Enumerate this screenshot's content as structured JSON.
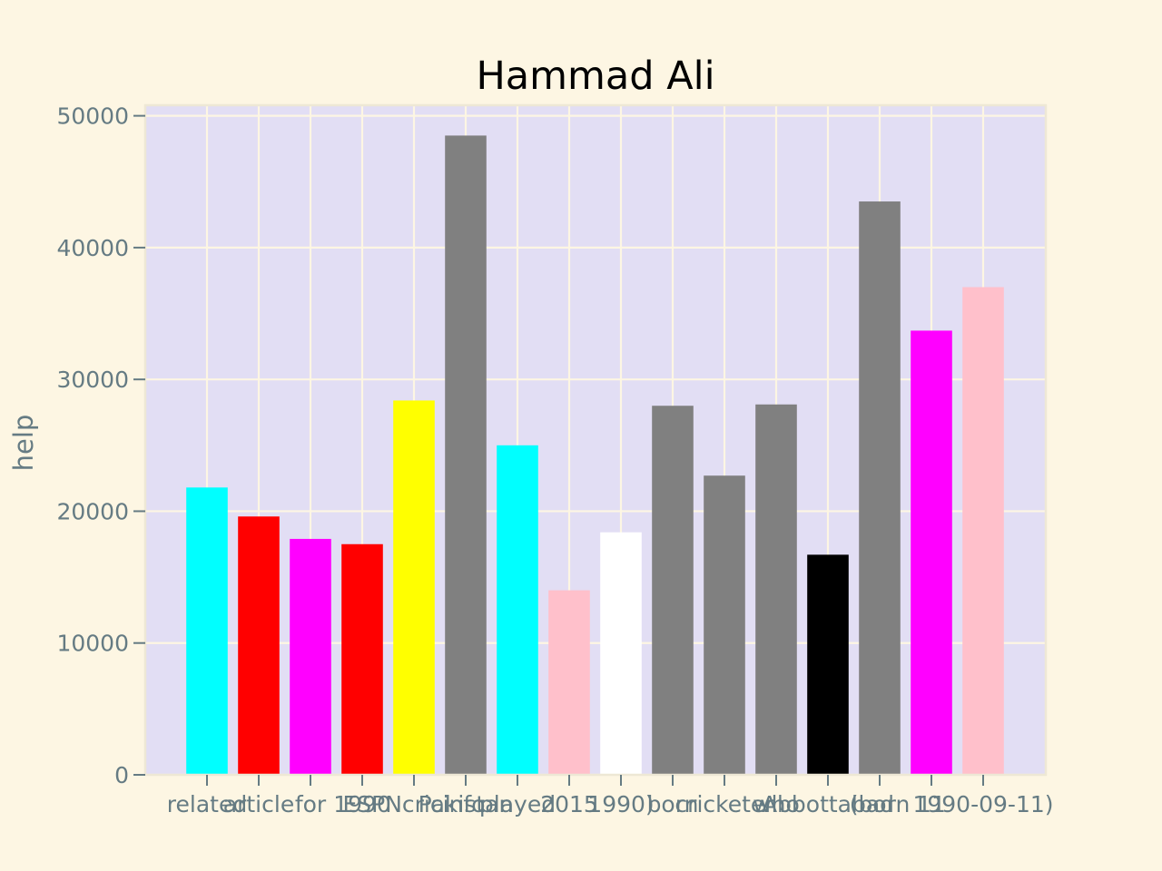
{
  "chart_data": {
    "type": "bar",
    "title": "Hammad Ali",
    "xlabel": "",
    "ylabel": "help",
    "ylim": [
      0,
      50000
    ],
    "yticks": [
      0,
      10000,
      20000,
      30000,
      40000,
      50000
    ],
    "yticklabels": [
      "0",
      "10000",
      "20000",
      "30000",
      "40000",
      "50000"
    ],
    "grid": true,
    "categories": [
      "related",
      "article",
      "for",
      "1990",
      "ESPNcricinfo",
      "Pakistan",
      "played",
      "2015",
      "1990)",
      "born",
      "cricketer",
      "who",
      "Abbottabad",
      "(born",
      "11",
      "1990-09-11)"
    ],
    "values": [
      21800,
      19600,
      17900,
      17500,
      28400,
      48500,
      25000,
      14000,
      18400,
      28000,
      22700,
      28100,
      16700,
      43500,
      33700,
      37000
    ],
    "colors": [
      "#00ffff",
      "#ff0000",
      "#ff00ff",
      "#ff0000",
      "#ffff00",
      "#808080",
      "#00ffff",
      "#ffc0cb",
      "#ffffff",
      "#808080",
      "#808080",
      "#808080",
      "#000000",
      "#808080",
      "#ff00ff",
      "#ffc0cb"
    ],
    "style": {
      "figure_background": "#fdf6e3",
      "plot_background": "#e2def4",
      "grid_color": "#fdf6e3",
      "tick_color": "#657b83"
    }
  }
}
